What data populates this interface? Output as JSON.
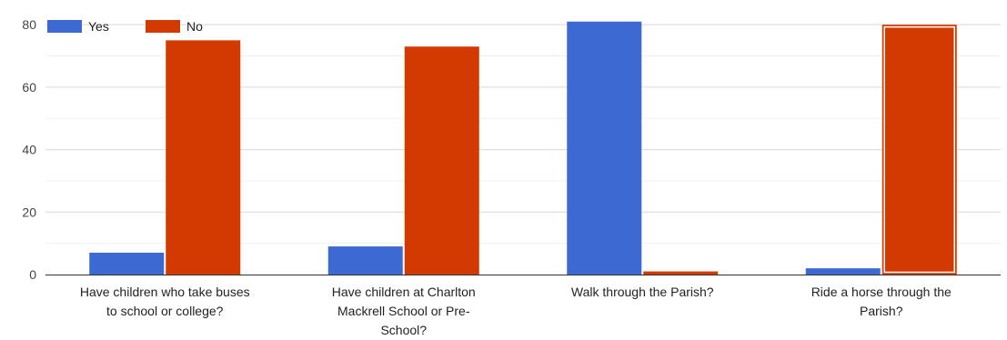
{
  "chart_data": {
    "type": "bar",
    "categories": [
      [
        "Have children who take buses",
        "to school or college?"
      ],
      [
        "Have children at Charlton",
        "Mackrell School or Pre-",
        "School?"
      ],
      [
        "Walk through the Parish?"
      ],
      [
        "Ride a horse through the",
        "Parish?"
      ]
    ],
    "series": [
      {
        "name": "Yes",
        "color": "#3d69d3",
        "values": [
          7,
          9,
          81,
          2
        ]
      },
      {
        "name": "No",
        "color": "#d23a02",
        "values": [
          75,
          73,
          1,
          80
        ]
      }
    ],
    "ylim": [
      0,
      85
    ],
    "yticks": [
      0,
      20,
      40,
      60,
      80
    ],
    "grid": true,
    "legend": "top-left",
    "highlighted": {
      "series": 1,
      "category": 3
    },
    "xlabel": "",
    "ylabel": "",
    "title": ""
  }
}
